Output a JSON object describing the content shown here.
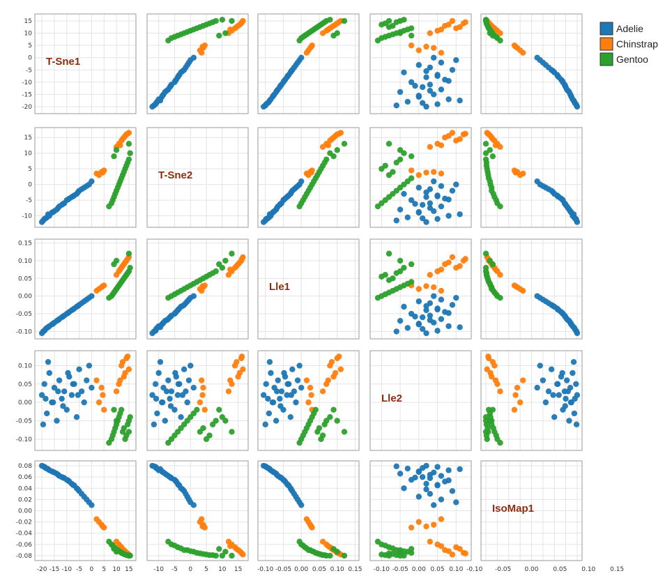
{
  "chart_data": {
    "type": "scatter",
    "title": "",
    "variables": [
      {
        "name": "T-Sne1",
        "ticks": [
          -20,
          -15,
          -10,
          -5,
          0,
          5,
          10,
          15
        ],
        "tick_labels": [
          "-20",
          "-15",
          "-10",
          "-5",
          "0",
          "5",
          "10",
          "15"
        ],
        "range": [
          -22,
          17
        ]
      },
      {
        "name": "T-Sne2",
        "ticks": [
          -10,
          -5,
          0,
          5,
          10,
          15
        ],
        "tick_labels": [
          "-10",
          "-5",
          "0",
          "5",
          "10",
          "15"
        ],
        "range": [
          -13,
          17.5
        ]
      },
      {
        "name": "Lle1",
        "ticks": [
          -0.1,
          -0.05,
          0.0,
          0.05,
          0.1,
          0.15
        ],
        "tick_labels": [
          "-0.10",
          "-0.05",
          "0.00",
          "0.05",
          "0.10",
          "0.15"
        ],
        "range": [
          -0.115,
          0.155
        ]
      },
      {
        "name": "Lle2",
        "ticks": [
          -0.1,
          -0.05,
          0.0,
          0.05,
          0.1
        ],
        "tick_labels": [
          "-0.10",
          "-0.05",
          "0.00",
          "0.05",
          "0.10"
        ],
        "range": [
          -0.125,
          0.135
        ]
      },
      {
        "name": "IsoMap1",
        "ticks": [
          -0.08,
          -0.06,
          -0.04,
          -0.02,
          0.0,
          0.02,
          0.04,
          0.06,
          0.08
        ],
        "tick_labels": [
          "-0.08",
          "-0.06",
          "-0.04",
          "-0.02",
          "0.00",
          "0.02",
          "0.04",
          "0.06",
          "0.08"
        ],
        "range": [
          -0.085,
          0.085
        ]
      }
    ],
    "bottom_ticks": [
      {
        "ticks": [
          -20,
          -15,
          -10,
          -5,
          0,
          5,
          10,
          15
        ],
        "tick_labels": [
          "-20",
          "-15",
          "-10",
          "-5",
          "0",
          "5",
          "10",
          "15"
        ]
      },
      {
        "ticks": [
          -10,
          -5,
          0,
          5,
          10,
          15
        ],
        "tick_labels": [
          "-10",
          "-5",
          "0",
          "5",
          "10",
          "15"
        ]
      },
      {
        "ticks": [
          -0.1,
          -0.05,
          0.0,
          0.05,
          0.1,
          0.15
        ],
        "tick_labels": [
          "-0.10",
          "-0.05",
          "0.00",
          "0.05",
          "0.10",
          "0.15"
        ]
      },
      {
        "ticks": [
          -0.1,
          -0.05,
          0.0,
          0.05,
          0.1
        ],
        "tick_labels": [
          "-0.10",
          "-0.05",
          "0.00",
          "0.05",
          "0.10"
        ]
      },
      {
        "ticks": [
          -0.1,
          -0.05,
          0.0,
          0.05,
          0.1,
          0.15
        ],
        "tick_labels": [
          "-0.10",
          "-0.05",
          "0.00",
          "0.05",
          "0.10",
          "0.15"
        ]
      }
    ],
    "series": [
      {
        "name": "Adelie",
        "color": "#1f77b4",
        "points": [
          [
            -20,
            -12,
            -0.105,
            0.02,
            0.08
          ],
          [
            -19,
            -11,
            -0.098,
            0.05,
            0.078
          ],
          [
            -18,
            -10.5,
            -0.09,
            -0.03,
            0.075
          ],
          [
            -17,
            -10,
            -0.085,
            0.08,
            0.072
          ],
          [
            -16,
            -9,
            -0.08,
            0.0,
            0.07
          ],
          [
            -15,
            -8.5,
            -0.075,
            0.04,
            0.068
          ],
          [
            -14,
            -8,
            -0.07,
            -0.05,
            0.066
          ],
          [
            -13,
            -7,
            -0.065,
            0.06,
            0.062
          ],
          [
            -12,
            -6.5,
            -0.06,
            0.01,
            0.06
          ],
          [
            -11,
            -6,
            -0.055,
            0.03,
            0.058
          ],
          [
            -10,
            -5,
            -0.05,
            -0.02,
            0.055
          ],
          [
            -9,
            -4.5,
            -0.045,
            0.07,
            0.052
          ],
          [
            -8,
            -4,
            -0.04,
            0.02,
            0.048
          ],
          [
            -7,
            -3.5,
            -0.035,
            0.05,
            0.045
          ],
          [
            -6,
            -3,
            -0.03,
            -0.04,
            0.04
          ],
          [
            -5,
            -2,
            -0.025,
            0.09,
            0.035
          ],
          [
            -4,
            -1.5,
            -0.02,
            0.03,
            0.03
          ],
          [
            -3,
            -1,
            -0.015,
            0.0,
            0.025
          ],
          [
            -2,
            -0.5,
            -0.01,
            0.06,
            0.02
          ],
          [
            -1,
            0,
            -0.005,
            0.1,
            0.015
          ],
          [
            0,
            1,
            0.0,
            0.04,
            0.01
          ],
          [
            -19.5,
            -11.5,
            -0.1,
            -0.06,
            0.079
          ],
          [
            -17.5,
            -9.5,
            -0.088,
            0.11,
            0.074
          ],
          [
            -15.5,
            -8.8,
            -0.078,
            0.0,
            0.069
          ],
          [
            -13.5,
            -7.5,
            -0.068,
            0.03,
            0.064
          ],
          [
            -11.5,
            -6.2,
            -0.058,
            -0.01,
            0.059
          ],
          [
            -9.5,
            -4.8,
            -0.048,
            0.08,
            0.054
          ],
          [
            -7.5,
            -3.8,
            -0.038,
            0.05,
            0.046
          ],
          [
            -5.5,
            -2.5,
            -0.028,
            0.02,
            0.038
          ],
          [
            -18.5,
            -10.8,
            -0.093,
            0.01,
            0.076
          ]
        ]
      },
      {
        "name": "Chinstrap",
        "color": "#ff7f0e",
        "points": [
          [
            12,
            14,
            0.08,
            0.1,
            -0.065
          ],
          [
            13,
            15,
            0.09,
            0.07,
            -0.07
          ],
          [
            14,
            16,
            0.1,
            0.12,
            -0.075
          ],
          [
            11,
            13,
            0.07,
            0.05,
            -0.06
          ],
          [
            15,
            16.5,
            0.11,
            0.09,
            -0.078
          ],
          [
            10,
            12,
            0.06,
            0.03,
            -0.055
          ],
          [
            3,
            3,
            0.02,
            0.0,
            -0.02
          ],
          [
            4,
            4,
            0.025,
            0.04,
            -0.025
          ],
          [
            5,
            4.5,
            0.03,
            -0.02,
            -0.03
          ],
          [
            2,
            3.5,
            0.015,
            0.06,
            -0.015
          ],
          [
            12.5,
            14.5,
            0.085,
            0.11,
            -0.068
          ],
          [
            13.5,
            15.5,
            0.095,
            0.08,
            -0.072
          ],
          [
            11.5,
            12.5,
            0.075,
            0.06,
            -0.063
          ],
          [
            14.5,
            16.2,
            0.105,
            0.125,
            -0.076
          ],
          [
            4.5,
            3.8,
            0.028,
            0.02,
            -0.028
          ]
        ]
      },
      {
        "name": "Gentoo",
        "color": "#2ca02c",
        "points": [
          [
            8,
            -6,
            0.0,
            -0.1,
            -0.06
          ],
          [
            9,
            -4,
            0.01,
            -0.08,
            -0.065
          ],
          [
            10,
            -2,
            0.02,
            -0.06,
            -0.07
          ],
          [
            11,
            0,
            0.03,
            -0.04,
            -0.072
          ],
          [
            12,
            2,
            0.04,
            -0.02,
            -0.075
          ],
          [
            13,
            4,
            0.05,
            -0.07,
            -0.077
          ],
          [
            14,
            6,
            0.06,
            -0.09,
            -0.079
          ],
          [
            15,
            8,
            0.07,
            -0.05,
            -0.08
          ],
          [
            7,
            -7,
            -0.005,
            -0.11,
            -0.055
          ],
          [
            8.5,
            -5,
            0.005,
            -0.09,
            -0.062
          ],
          [
            9.5,
            -3,
            0.015,
            -0.07,
            -0.067
          ],
          [
            10.5,
            -1,
            0.025,
            -0.05,
            -0.07
          ],
          [
            11.5,
            1,
            0.035,
            -0.03,
            -0.073
          ],
          [
            12.5,
            3,
            0.045,
            -0.08,
            -0.076
          ],
          [
            13.5,
            5,
            0.055,
            -0.1,
            -0.078
          ],
          [
            14.5,
            7,
            0.065,
            -0.06,
            -0.079
          ],
          [
            15.5,
            10,
            0.08,
            -0.04,
            -0.08
          ],
          [
            9,
            9,
            0.09,
            -0.02,
            -0.068
          ],
          [
            10,
            11,
            0.1,
            -0.05,
            -0.073
          ],
          [
            15,
            13,
            0.12,
            -0.08,
            -0.08
          ]
        ]
      }
    ],
    "legend": {
      "position": "top-right",
      "entries": [
        "Adelie",
        "Chinstrap",
        "Gentoo"
      ]
    },
    "grid": true
  }
}
